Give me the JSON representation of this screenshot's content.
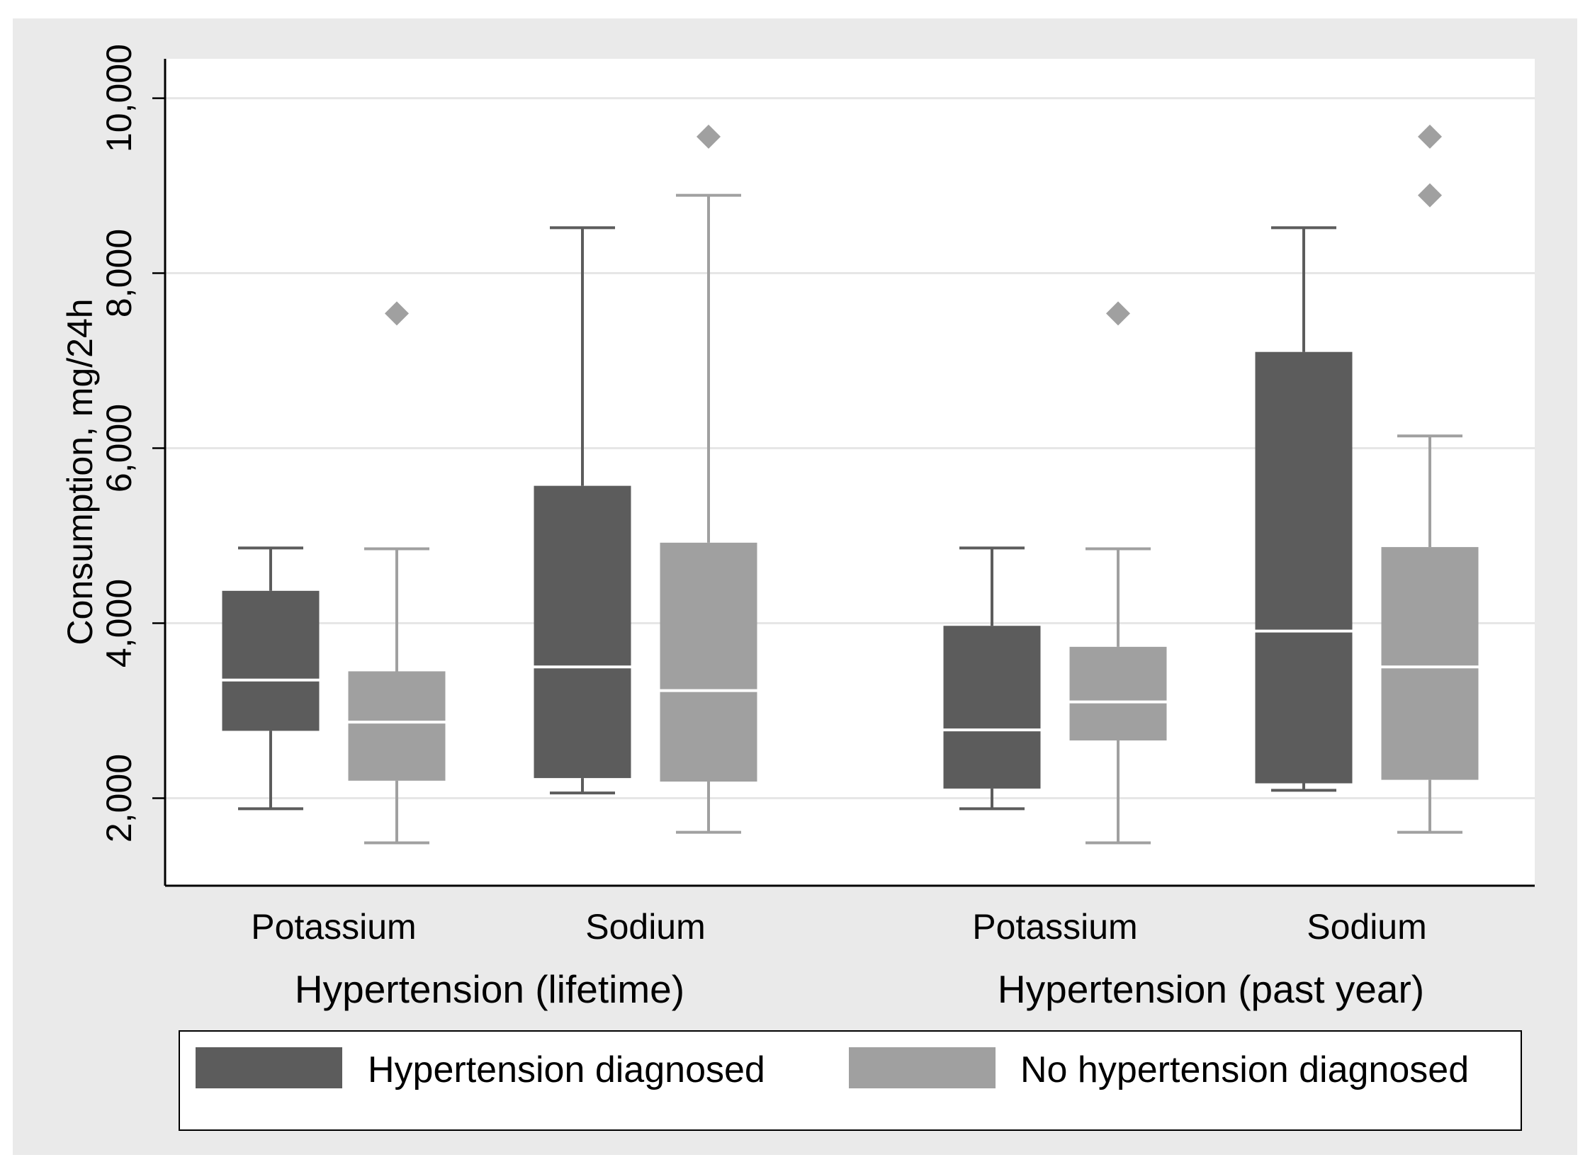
{
  "chart_data": {
    "type": "box",
    "ylabel": "Consumption, mg/24h",
    "xlabel": "",
    "ylim": [
      1000,
      10450
    ],
    "yticks": [
      2000,
      4000,
      6000,
      8000,
      10000
    ],
    "ytick_labels": [
      "2,000",
      "4,000",
      "6,000",
      "8,000",
      "10,000"
    ],
    "grid": true,
    "legend_position": "bottom",
    "groups": [
      {
        "label": "Hypertension (lifetime)",
        "categories": [
          {
            "label": "Potassium",
            "boxes": [
              {
                "series": "Hypertension diagnosed",
                "whisker_low": 1880,
                "q1": 2770,
                "median": 3350,
                "q3": 4370,
                "whisker_high": 4860,
                "outliers": []
              },
              {
                "series": "No hypertension diagnosed",
                "whisker_low": 1490,
                "q1": 2200,
                "median": 2870,
                "q3": 3450,
                "whisker_high": 4850,
                "outliers": [
                  7540
                ]
              }
            ]
          },
          {
            "label": "Sodium",
            "boxes": [
              {
                "series": "Hypertension diagnosed",
                "whisker_low": 2060,
                "q1": 2230,
                "median": 3500,
                "q3": 5570,
                "whisker_high": 8520,
                "outliers": []
              },
              {
                "series": "No hypertension diagnosed",
                "whisker_low": 1610,
                "q1": 2190,
                "median": 3230,
                "q3": 4920,
                "whisker_high": 8890,
                "outliers": [
                  9560
                ]
              }
            ]
          }
        ]
      },
      {
        "label": "Hypertension (past year)",
        "categories": [
          {
            "label": "Potassium",
            "boxes": [
              {
                "series": "Hypertension diagnosed",
                "whisker_low": 1880,
                "q1": 2110,
                "median": 2780,
                "q3": 3970,
                "whisker_high": 4860,
                "outliers": []
              },
              {
                "series": "No hypertension diagnosed",
                "whisker_low": 1490,
                "q1": 2660,
                "median": 3100,
                "q3": 3730,
                "whisker_high": 4850,
                "outliers": [
                  7540
                ]
              }
            ]
          },
          {
            "label": "Sodium",
            "boxes": [
              {
                "series": "Hypertension diagnosed",
                "whisker_low": 2090,
                "q1": 2170,
                "median": 3910,
                "q3": 7100,
                "whisker_high": 8520,
                "outliers": []
              },
              {
                "series": "No hypertension diagnosed",
                "whisker_low": 1610,
                "q1": 2210,
                "median": 3500,
                "q3": 4870,
                "whisker_high": 6140,
                "outliers": [
                  8890,
                  9560
                ]
              }
            ]
          }
        ]
      }
    ],
    "legend": [
      {
        "label": "Hypertension diagnosed",
        "color": "#5c5c5c"
      },
      {
        "label": "No hypertension diagnosed",
        "color": "#a0a0a0"
      }
    ]
  }
}
